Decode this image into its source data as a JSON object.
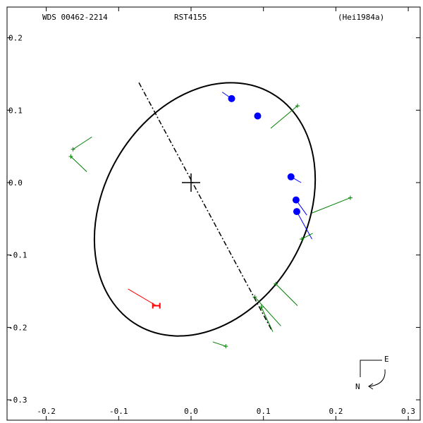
{
  "header": {
    "left": "WDS 00462-2214",
    "center": "RST4155",
    "right": "(Hei1984a)"
  },
  "compass": {
    "east": "E",
    "north": "N"
  },
  "chart_data": {
    "type": "scatter",
    "title": "",
    "xlabel": "",
    "ylabel": "",
    "xlim": [
      -0.2,
      0.3
    ],
    "ylim": [
      -0.3,
      0.2
    ],
    "x_ticks": [
      -0.2,
      -0.1,
      0.0,
      0.1,
      0.2,
      0.3
    ],
    "y_ticks": [
      0.2,
      0.1,
      0.0,
      -0.1,
      -0.2,
      -0.3
    ],
    "x_tick_labels": [
      "-0.2",
      "-0.1",
      "0.0",
      "0.1",
      "0.2",
      "0.3"
    ],
    "y_tick_labels": [
      "0.2",
      "0.1",
      "0.0",
      "-0.1",
      "-0.2",
      "-0.3"
    ],
    "colors": {
      "orbit": "#000000",
      "blue": "#0000ff",
      "green": "#008000",
      "red": "#ff0000"
    },
    "orbit": {
      "center": [
        0.019,
        -0.037
      ],
      "semi_major": 0.185,
      "semi_minor": 0.14,
      "angle_deg": -60,
      "line_of_nodes": [
        [
          -0.072,
          0.138
        ],
        [
          0.112,
          -0.205
        ]
      ]
    },
    "primary": [
      0.0,
      0.0
    ],
    "blue_points": [
      {
        "obs": [
          0.056,
          0.116
        ],
        "calc": [
          0.043,
          0.125
        ]
      },
      {
        "obs": [
          0.092,
          0.092
        ],
        "calc": [
          0.095,
          0.094
        ]
      },
      {
        "obs": [
          0.138,
          0.008
        ],
        "calc": [
          0.152,
          0.0
        ]
      },
      {
        "obs": [
          0.145,
          -0.024
        ],
        "calc": [
          0.16,
          -0.045
        ]
      },
      {
        "obs": [
          0.146,
          -0.04
        ],
        "calc": [
          0.167,
          -0.078
        ]
      }
    ],
    "green_points": [
      {
        "obs": [
          0.147,
          0.106
        ],
        "calc": [
          0.11,
          0.075
        ]
      },
      {
        "obs": [
          -0.163,
          0.046
        ],
        "calc": [
          -0.137,
          0.063
        ]
      },
      {
        "obs": [
          -0.166,
          0.036
        ],
        "calc": [
          -0.144,
          0.015
        ]
      },
      {
        "obs": [
          0.22,
          -0.021
        ],
        "calc": [
          0.167,
          -0.042
        ]
      },
      {
        "obs": [
          0.153,
          -0.078
        ],
        "calc": [
          0.168,
          -0.07
        ]
      },
      {
        "obs": [
          0.117,
          -0.14
        ],
        "calc": [
          0.147,
          -0.17
        ]
      },
      {
        "obs": [
          0.088,
          -0.158
        ],
        "calc": [
          0.124,
          -0.198
        ]
      },
      {
        "obs": [
          0.097,
          -0.172
        ],
        "calc": [
          0.113,
          -0.206
        ]
      },
      {
        "obs": [
          0.048,
          -0.226
        ],
        "calc": [
          0.03,
          -0.22
        ]
      }
    ],
    "red_points": [
      {
        "obs": [
          -0.048,
          -0.17
        ],
        "calc": [
          -0.087,
          -0.147
        ]
      }
    ]
  }
}
